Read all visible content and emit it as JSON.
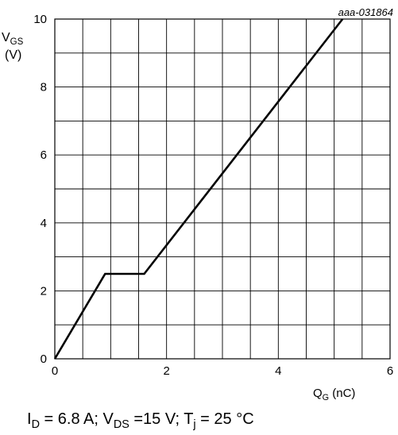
{
  "figure_id": "aaa-031864",
  "chart_data": {
    "type": "line",
    "xlabel_main": "Q",
    "xlabel_sub": "G",
    "xlabel_unit": " (nC)",
    "ylabel_main": "V",
    "ylabel_sub": "GS",
    "ylabel_unit": "(V)",
    "xlim": [
      0,
      6
    ],
    "ylim": [
      0,
      10
    ],
    "x_ticks": [
      "0",
      "2",
      "4",
      "6"
    ],
    "y_ticks": [
      "0",
      "2",
      "4",
      "6",
      "8",
      "10"
    ],
    "grid": true,
    "series": [
      {
        "x": [
          0,
          0.9,
          1.6,
          5.15
        ],
        "y": [
          0,
          2.5,
          2.5,
          10
        ]
      }
    ],
    "color": "#000000"
  },
  "caption": {
    "id_main": "I",
    "id_sub": "D",
    "id_rest": " = 6.8 A; V",
    "vds_sub": "DS",
    "vds_rest": " =15 V; T",
    "tj_sub": "j",
    "tj_rest": " = 25 °C"
  }
}
